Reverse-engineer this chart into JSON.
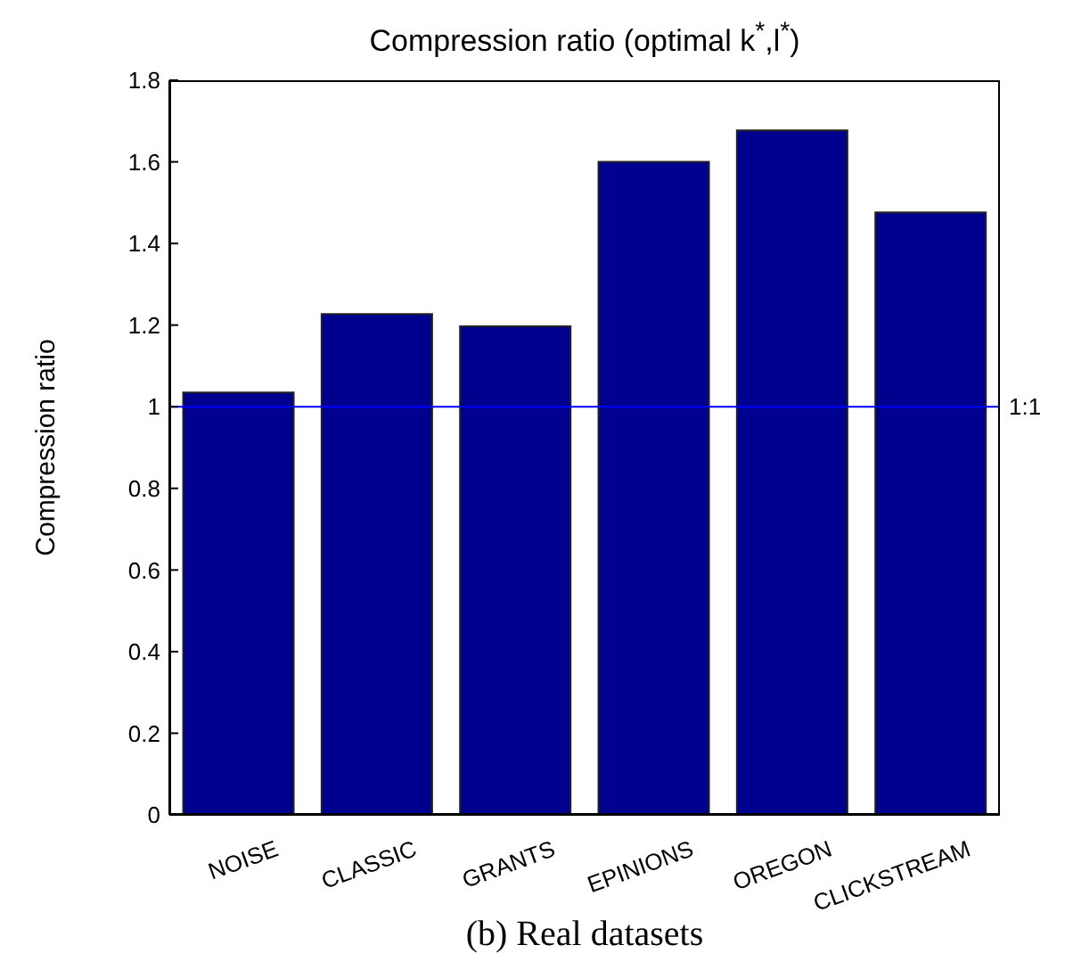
{
  "chart_data": {
    "type": "bar",
    "title": "Compression ratio (optimal k$^{*}$,l$^{*}$)",
    "ylabel": "Compression ratio",
    "categories": [
      "NOISE",
      "CLASSIC",
      "GRANTS",
      "EPINIONS",
      "OREGON",
      "CLICKSTREAM"
    ],
    "values": [
      1.035,
      1.227,
      1.197,
      1.6,
      1.677,
      1.476
    ],
    "color": "#00008f",
    "ylim": [
      0,
      1.8
    ],
    "yticks": [
      0,
      0.2,
      0.4,
      0.6,
      0.8,
      1,
      1.2,
      1.4,
      1.6,
      1.8
    ],
    "ref_lines": [
      {
        "axis": "y",
        "value": 1,
        "label": "1:1",
        "color": "#0000ff"
      }
    ],
    "annotations": [
      "(b) Real datasets"
    ]
  }
}
